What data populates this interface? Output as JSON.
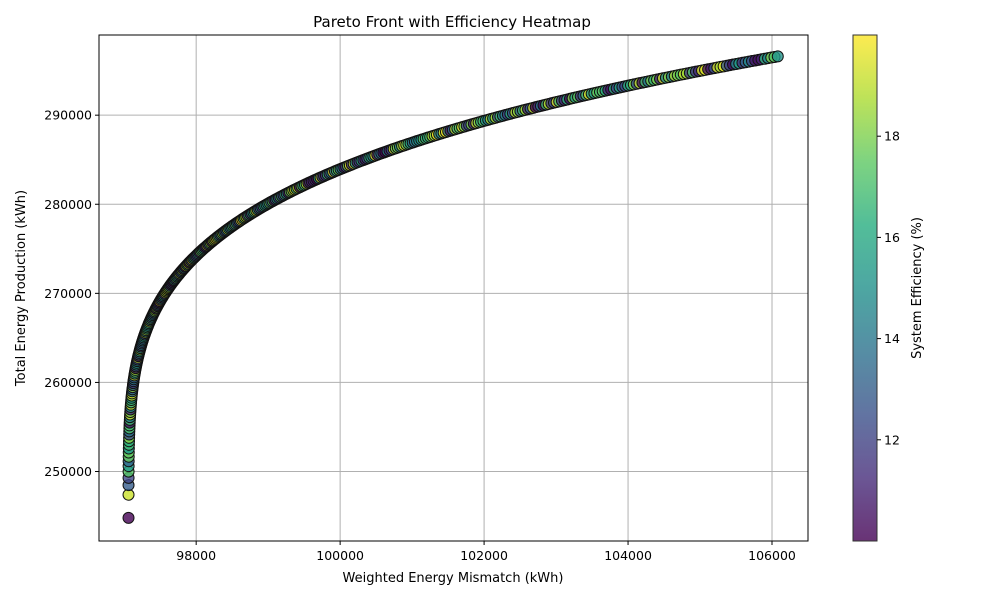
{
  "chart_data": {
    "type": "scatter",
    "title": "Pareto Front with Efficiency Heatmap",
    "xlabel": "Weighted Energy Mismatch (kWh)",
    "ylabel": "Total Energy Production (kWh)",
    "xlim": [
      96650,
      106500
    ],
    "ylim": [
      242200,
      299000
    ],
    "xticks": [
      98000,
      100000,
      102000,
      104000,
      106000
    ],
    "xtick_labels": [
      "98000",
      "100000",
      "102000",
      "104000",
      "106000"
    ],
    "yticks": [
      250000,
      260000,
      270000,
      280000,
      290000
    ],
    "ytick_labels": [
      "250000",
      "260000",
      "270000",
      "280000",
      "290000"
    ],
    "grid": true,
    "colormap": "viridis",
    "colorbar": {
      "label": "System Efficiency (%)",
      "range": [
        10.0,
        20.0
      ],
      "ticks": [
        12,
        14,
        16,
        18
      ],
      "tick_labels": [
        "12",
        "14",
        "16",
        "18"
      ]
    },
    "front": {
      "x_min": 97060,
      "x_max": 106080,
      "y_min": 244800,
      "y_max": 296600,
      "n_points": 400,
      "efficiency_range_pct": [
        10.0,
        20.0
      ]
    }
  }
}
